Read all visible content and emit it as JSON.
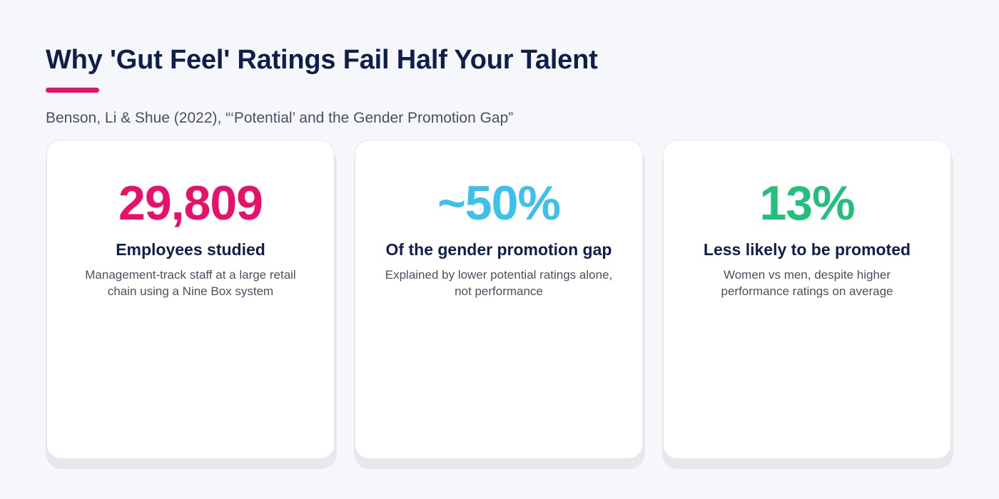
{
  "header": {
    "title": "Why 'Gut Feel' Ratings Fail Half Your Talent",
    "subtitle": "Benson, Li & Shue (2022), “‘Potential’ and the Gender Promotion Gap”",
    "accent_color": "#e9106b"
  },
  "cards": [
    {
      "stat": "29,809",
      "stat_color": "#e9106b",
      "label": "Employees studied",
      "description": "Management-track staff at a large retail chain using a Nine Box system"
    },
    {
      "stat": "~50%",
      "stat_color": "#3cc0ec",
      "label": "Of the gender promotion gap",
      "description": "Explained by lower potential ratings alone, not performance"
    },
    {
      "stat": "13%",
      "stat_color": "#22c07b",
      "label": "Less likely to be promoted",
      "description": "Women vs men, despite higher performance ratings on average"
    }
  ]
}
